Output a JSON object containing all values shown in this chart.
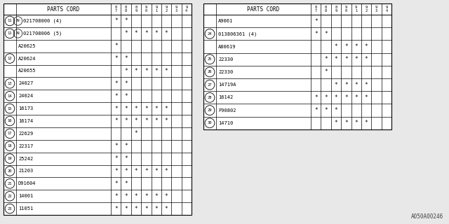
{
  "watermark": "A050A00246",
  "col_headers": [
    "8\n7",
    "8\n8",
    "8\n9",
    "9\n0",
    "9\n1",
    "9\n2",
    "9\n3",
    "9\n4"
  ],
  "left_table": {
    "header": "PARTS CORD",
    "rows": [
      {
        "num": "11",
        "part": "N021708000 (4)",
        "n_prefix": true,
        "marks": [
          1,
          1,
          0,
          0,
          0,
          0,
          0,
          0
        ]
      },
      {
        "num": "11",
        "part": "N021708006 (5)",
        "n_prefix": true,
        "marks": [
          0,
          1,
          1,
          1,
          1,
          1,
          0,
          0
        ]
      },
      {
        "num": "",
        "part": "A20625",
        "n_prefix": false,
        "marks": [
          1,
          0,
          0,
          0,
          0,
          0,
          0,
          0
        ]
      },
      {
        "num": "12",
        "part": "A20624",
        "n_prefix": false,
        "marks": [
          1,
          1,
          0,
          0,
          0,
          0,
          0,
          0
        ]
      },
      {
        "num": "",
        "part": "A20655",
        "n_prefix": false,
        "marks": [
          0,
          1,
          1,
          1,
          1,
          1,
          0,
          0
        ]
      },
      {
        "num": "13",
        "part": "24027",
        "n_prefix": false,
        "marks": [
          1,
          1,
          0,
          0,
          0,
          0,
          0,
          0
        ]
      },
      {
        "num": "14",
        "part": "24024",
        "n_prefix": false,
        "marks": [
          1,
          1,
          0,
          0,
          0,
          0,
          0,
          0
        ]
      },
      {
        "num": "15",
        "part": "16173",
        "n_prefix": false,
        "marks": [
          1,
          1,
          1,
          1,
          1,
          1,
          0,
          0
        ]
      },
      {
        "num": "16",
        "part": "16174",
        "n_prefix": false,
        "marks": [
          1,
          1,
          1,
          1,
          1,
          1,
          0,
          0
        ]
      },
      {
        "num": "17",
        "part": "22629",
        "n_prefix": false,
        "marks": [
          0,
          0,
          1,
          0,
          0,
          0,
          0,
          0
        ]
      },
      {
        "num": "18",
        "part": "22317",
        "n_prefix": false,
        "marks": [
          1,
          1,
          0,
          0,
          0,
          0,
          0,
          0
        ]
      },
      {
        "num": "19",
        "part": "25242",
        "n_prefix": false,
        "marks": [
          1,
          1,
          0,
          0,
          0,
          0,
          0,
          0
        ]
      },
      {
        "num": "20",
        "part": "21203",
        "n_prefix": false,
        "marks": [
          1,
          1,
          1,
          1,
          1,
          1,
          0,
          0
        ]
      },
      {
        "num": "21",
        "part": "D91604",
        "n_prefix": false,
        "marks": [
          1,
          1,
          0,
          0,
          0,
          0,
          0,
          0
        ]
      },
      {
        "num": "22",
        "part": "14001",
        "n_prefix": false,
        "marks": [
          1,
          1,
          1,
          1,
          1,
          1,
          0,
          0
        ]
      },
      {
        "num": "23",
        "part": "11051",
        "n_prefix": false,
        "marks": [
          1,
          1,
          1,
          1,
          1,
          1,
          0,
          0
        ]
      }
    ]
  },
  "right_table": {
    "header": "PARTS CORD",
    "rows": [
      {
        "num": "",
        "part": "A9061",
        "n_prefix": false,
        "marks": [
          1,
          0,
          0,
          0,
          0,
          0,
          0,
          0
        ]
      },
      {
        "num": "24",
        "part": "013806361 (4)",
        "n_prefix": false,
        "marks": [
          1,
          1,
          0,
          0,
          0,
          0,
          0,
          0
        ]
      },
      {
        "num": "",
        "part": "A80619",
        "n_prefix": false,
        "marks": [
          0,
          0,
          1,
          1,
          1,
          1,
          0,
          0
        ]
      },
      {
        "num": "25",
        "part": "22330",
        "n_prefix": false,
        "marks": [
          0,
          1,
          1,
          1,
          1,
          1,
          0,
          0
        ]
      },
      {
        "num": "26",
        "part": "22330",
        "n_prefix": false,
        "marks": [
          0,
          1,
          0,
          0,
          0,
          0,
          0,
          0
        ]
      },
      {
        "num": "27",
        "part": "14719A",
        "n_prefix": false,
        "marks": [
          0,
          0,
          1,
          1,
          1,
          1,
          0,
          0
        ]
      },
      {
        "num": "28",
        "part": "16142",
        "n_prefix": false,
        "marks": [
          1,
          1,
          1,
          1,
          1,
          1,
          0,
          0
        ]
      },
      {
        "num": "29",
        "part": "F90802",
        "n_prefix": false,
        "marks": [
          1,
          1,
          1,
          0,
          0,
          0,
          0,
          0
        ]
      },
      {
        "num": "30",
        "part": "14710",
        "n_prefix": false,
        "marks": [
          0,
          0,
          1,
          1,
          1,
          1,
          0,
          0
        ]
      }
    ]
  },
  "bg_color": "#e8e8e8",
  "table_bg": "#ffffff",
  "line_color": "#000000",
  "text_color": "#000000",
  "font_size": 5.0,
  "header_font_size": 5.5,
  "num_font_size": 4.0,
  "mark_font_size": 5.5,
  "year_font_size": 3.8
}
